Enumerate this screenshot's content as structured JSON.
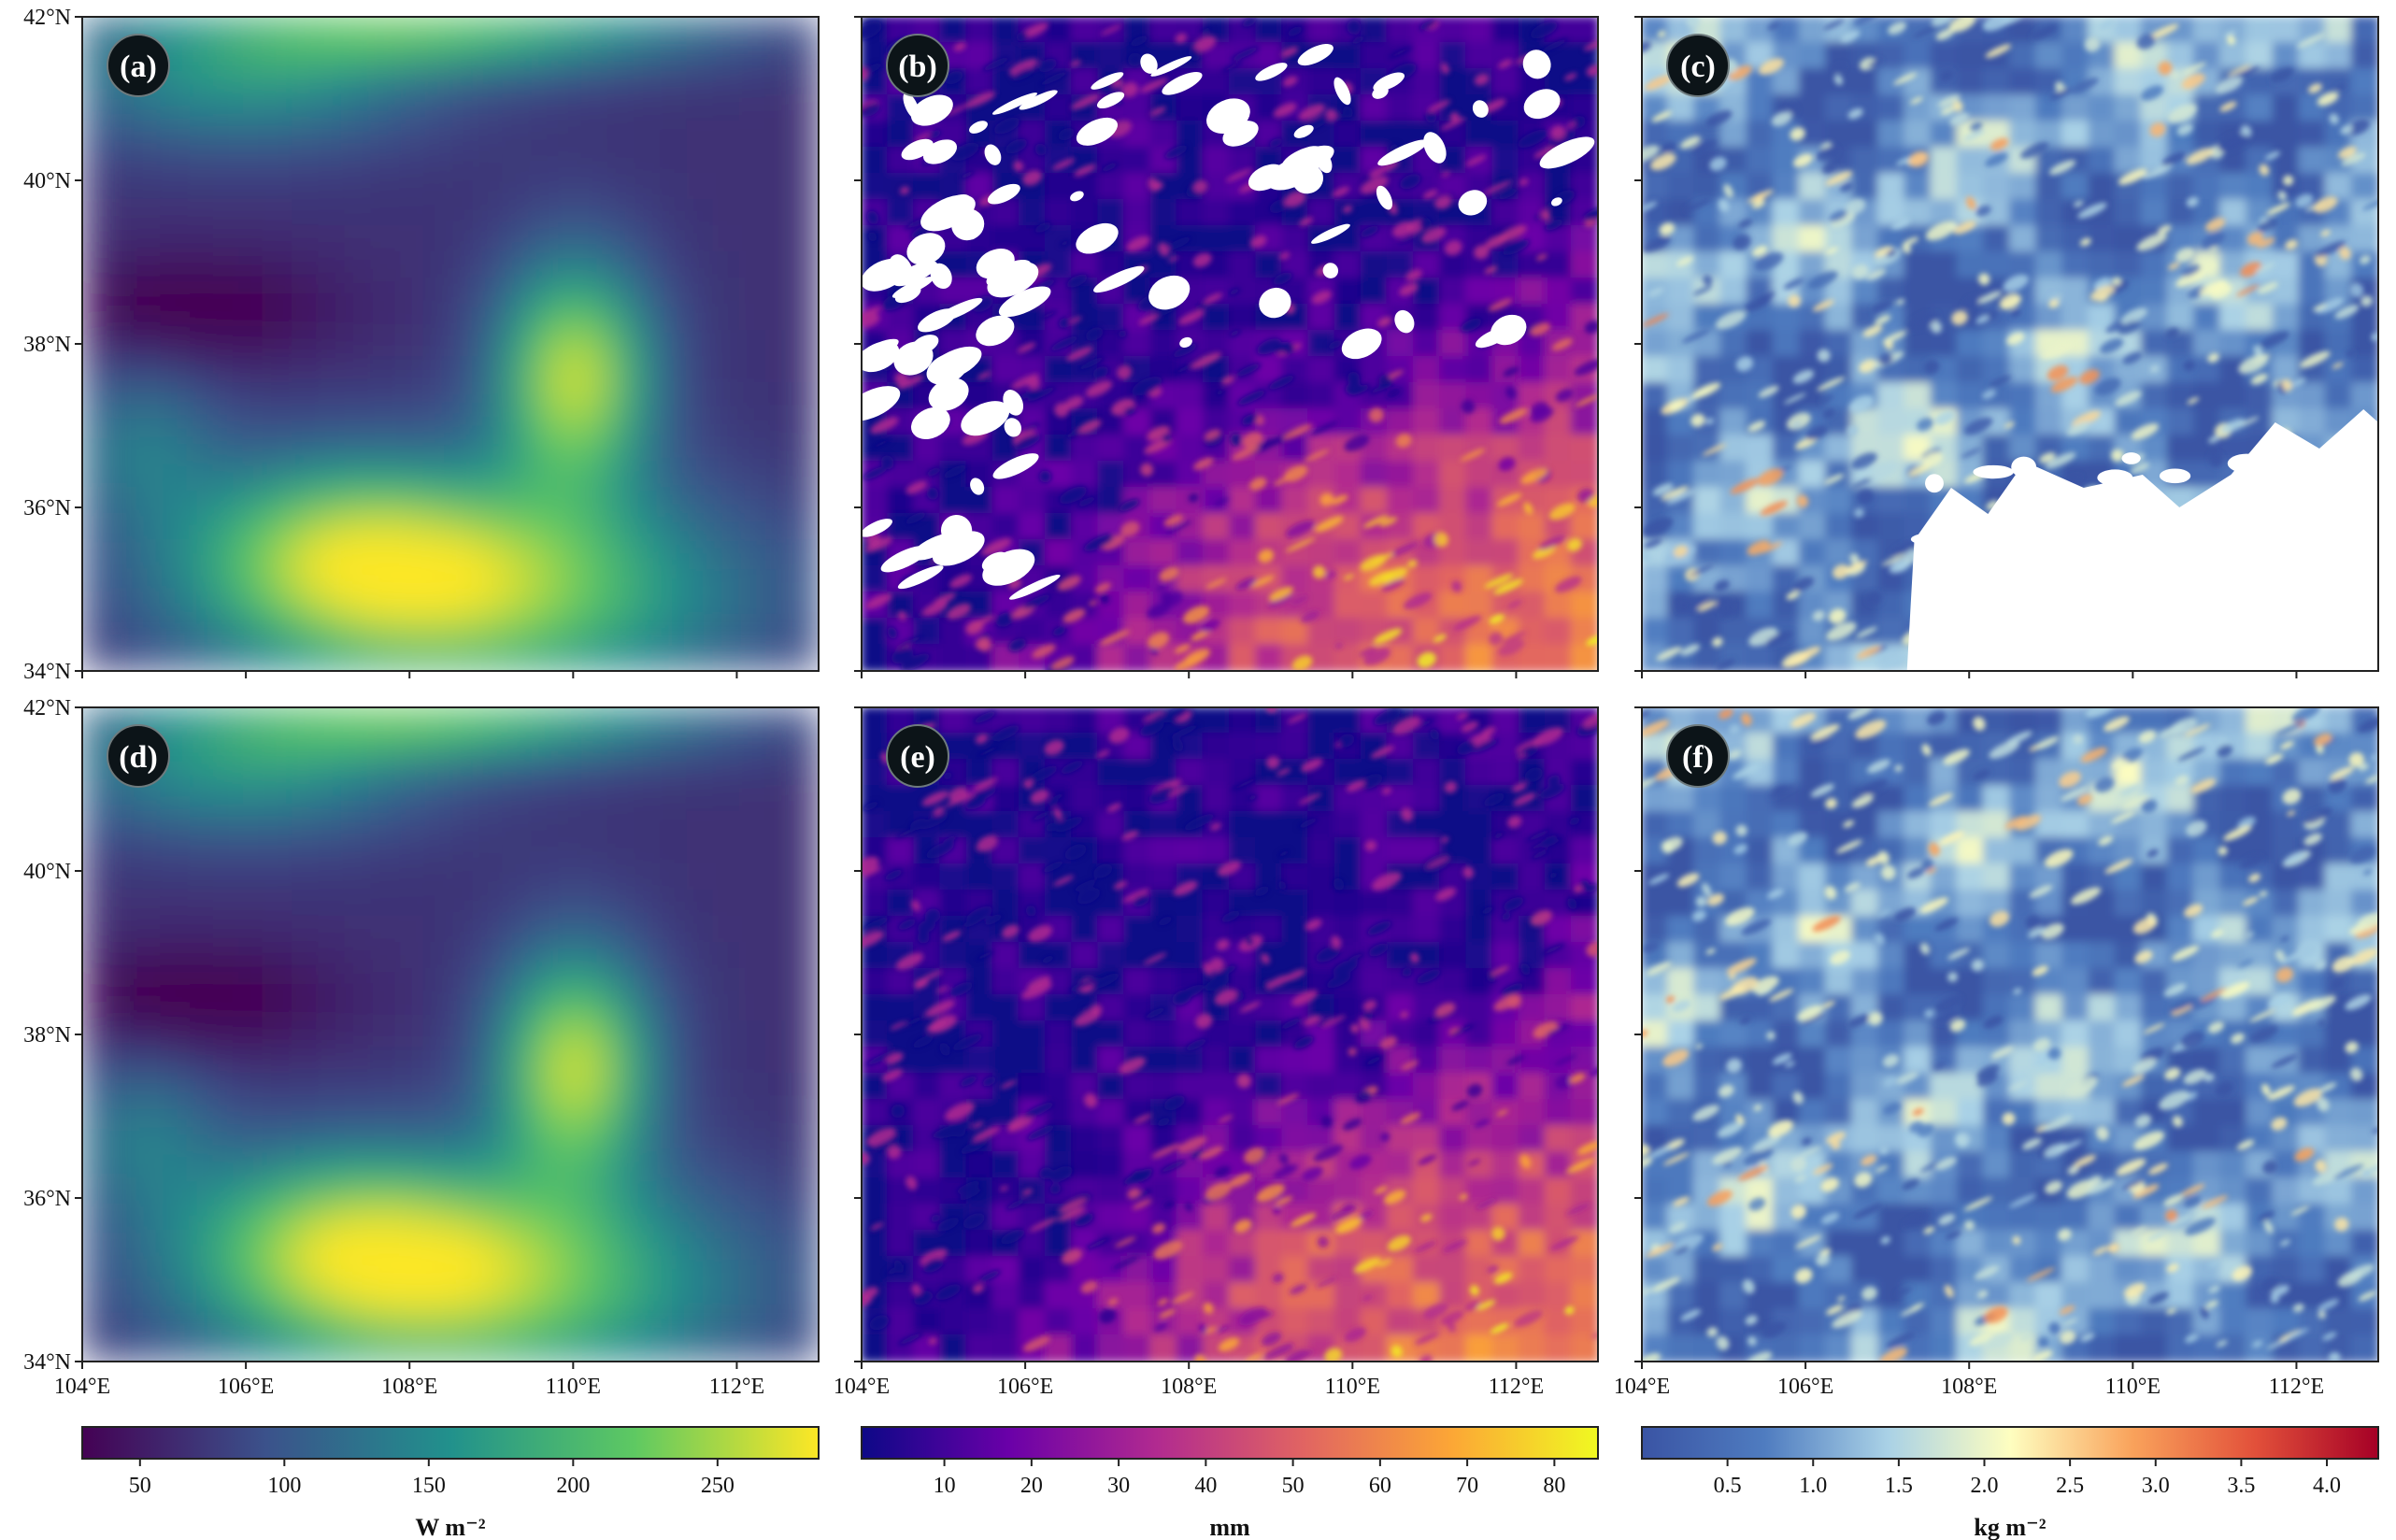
{
  "chart_data": {
    "type": "heatmap",
    "x_axis": {
      "ticks": [
        "104°E",
        "106°E",
        "108°E",
        "110°E",
        "112°E"
      ],
      "range": [
        104,
        113
      ]
    },
    "y_axis": {
      "ticks": [
        "34°N",
        "36°N",
        "38°N",
        "40°N",
        "42°N"
      ],
      "range": [
        34,
        42
      ]
    },
    "panels": [
      {
        "label": "(a)",
        "colormap": "viridis",
        "variable": "W m⁻²",
        "missing_data": "none"
      },
      {
        "label": "(b)",
        "colormap": "plasma",
        "variable": "mm",
        "missing_data": "white gaps in northern and western parts"
      },
      {
        "label": "(c)",
        "colormap": "RdYlBu_r",
        "variable": "kg m⁻²",
        "missing_data": "large white gap in south-east"
      },
      {
        "label": "(d)",
        "colormap": "viridis",
        "variable": "W m⁻²",
        "missing_data": "none"
      },
      {
        "label": "(e)",
        "colormap": "plasma",
        "variable": "mm",
        "missing_data": "none"
      },
      {
        "label": "(f)",
        "colormap": "RdYlBu_r",
        "variable": "kg m⁻²",
        "missing_data": "none"
      }
    ],
    "colorbars": [
      {
        "label": "W m⁻²",
        "range": [
          30,
          285
        ],
        "ticks": [
          "50",
          "100",
          "150",
          "200",
          "250"
        ],
        "tick_values": [
          50,
          100,
          150,
          200,
          250
        ],
        "colors": [
          "#440154",
          "#3b528b",
          "#21918c",
          "#5ec962",
          "#fde725"
        ]
      },
      {
        "label": "mm",
        "range": [
          0.5,
          85
        ],
        "ticks": [
          "10",
          "20",
          "30",
          "40",
          "50",
          "60",
          "70",
          "80"
        ],
        "tick_values": [
          10,
          20,
          30,
          40,
          50,
          60,
          70,
          80
        ],
        "colors": [
          "#0d0887",
          "#6a00a8",
          "#b12a90",
          "#e16462",
          "#fca636",
          "#f0f921"
        ]
      },
      {
        "label": "kg m⁻²",
        "range": [
          0,
          4.3
        ],
        "ticks": [
          "0.5",
          "1.0",
          "1.5",
          "2.0",
          "2.5",
          "3.0",
          "3.5",
          "4.0"
        ],
        "tick_values": [
          0.5,
          1.0,
          1.5,
          2.0,
          2.5,
          3.0,
          3.5,
          4.0
        ],
        "colors": [
          "#3a54a4",
          "#4f7cc0",
          "#a9d1e6",
          "#fefec0",
          "#f9a25b",
          "#e2503a",
          "#a50026"
        ]
      }
    ]
  }
}
